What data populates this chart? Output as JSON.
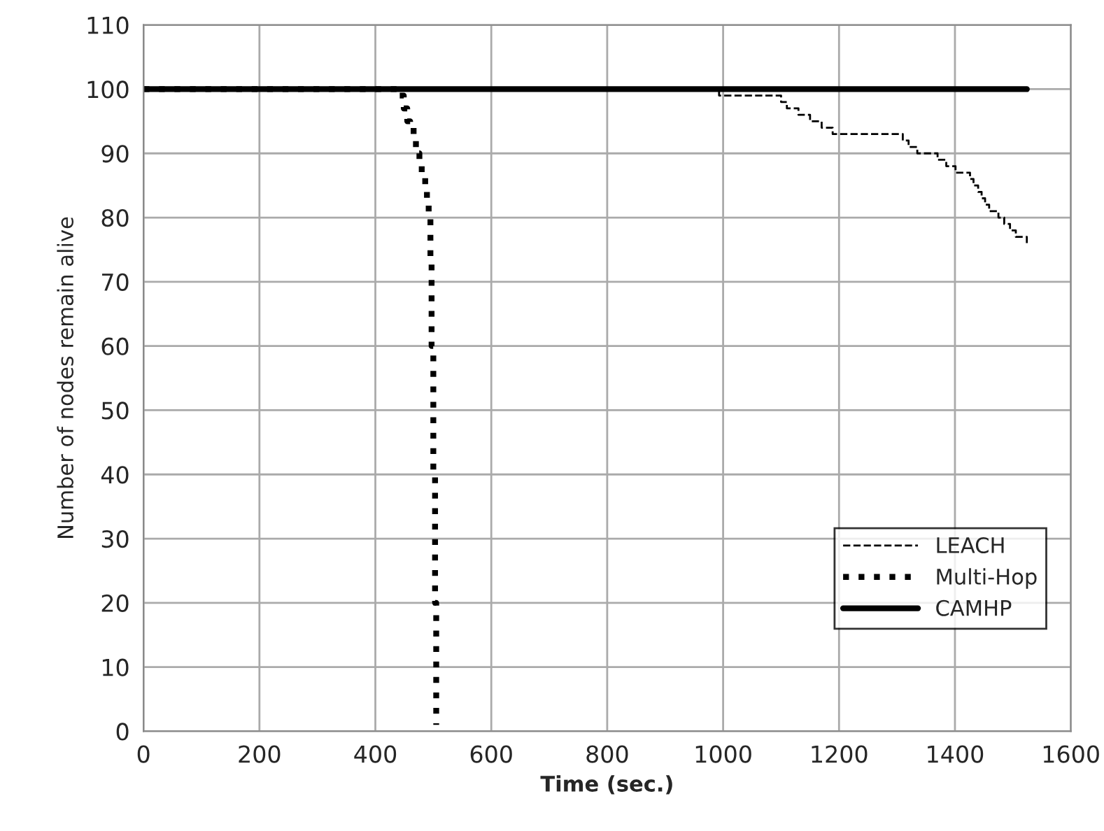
{
  "chart_data": {
    "type": "step",
    "xlabel": "Time (sec.)",
    "ylabel": "Number of nodes remain alive",
    "xlim": [
      0,
      1600
    ],
    "xticks": [
      0,
      200,
      400,
      600,
      800,
      1000,
      1200,
      1400,
      1600
    ],
    "ylim": [
      0,
      110
    ],
    "yticks": [
      0,
      10,
      20,
      30,
      40,
      50,
      60,
      70,
      80,
      90,
      100,
      110
    ],
    "grid": true,
    "legend": "bottom right",
    "series": [
      {
        "name": "LEACH",
        "color": "#000000",
        "line_style": "dashed",
        "x": [
          0,
          993,
          1091,
          1100,
          1110,
          1130,
          1150,
          1170,
          1189,
          1296,
          1310,
          1320,
          1335,
          1353,
          1370,
          1385,
          1401,
          1426,
          1432,
          1440,
          1446,
          1452,
          1459,
          1475,
          1485,
          1495,
          1505,
          1515,
          1524
        ],
        "values": [
          100,
          99,
          99,
          98,
          97,
          96,
          95,
          94,
          93,
          93,
          92,
          91,
          90,
          90,
          89,
          88,
          87,
          86,
          85,
          84,
          83,
          82,
          81,
          80,
          79,
          78,
          77,
          77,
          76
        ]
      },
      {
        "name": "Multi-Hop",
        "color": "#000000",
        "line_style": "dotted",
        "x": [
          0,
          424,
          440,
          449,
          455,
          460,
          466,
          470,
          476,
          480,
          486,
          489,
          492,
          495,
          497,
          500,
          503,
          505
        ],
        "values": [
          100,
          100,
          99,
          97,
          95,
          94,
          92,
          90,
          88,
          87,
          85,
          83,
          80,
          73,
          60,
          40,
          20,
          1
        ]
      },
      {
        "name": "CAMHP",
        "color": "#000000",
        "line_style": "solid",
        "type": "line",
        "x": [
          0,
          1524
        ],
        "values": [
          100,
          100
        ]
      }
    ]
  }
}
